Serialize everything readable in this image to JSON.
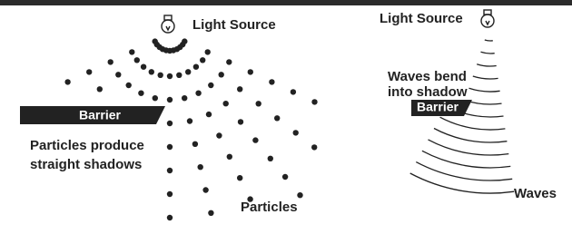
{
  "left_panel": {
    "light_source_label": "Light Source",
    "barrier_label": "Barrier",
    "caption": [
      "Particles produce",
      "straight shadows"
    ],
    "particles_label": "Particles"
  },
  "right_panel": {
    "light_source_label": "Light Source",
    "caption": [
      "Waves bend",
      "into shadow"
    ],
    "barrier_label": "Barrier",
    "waves_label": "Waves"
  }
}
